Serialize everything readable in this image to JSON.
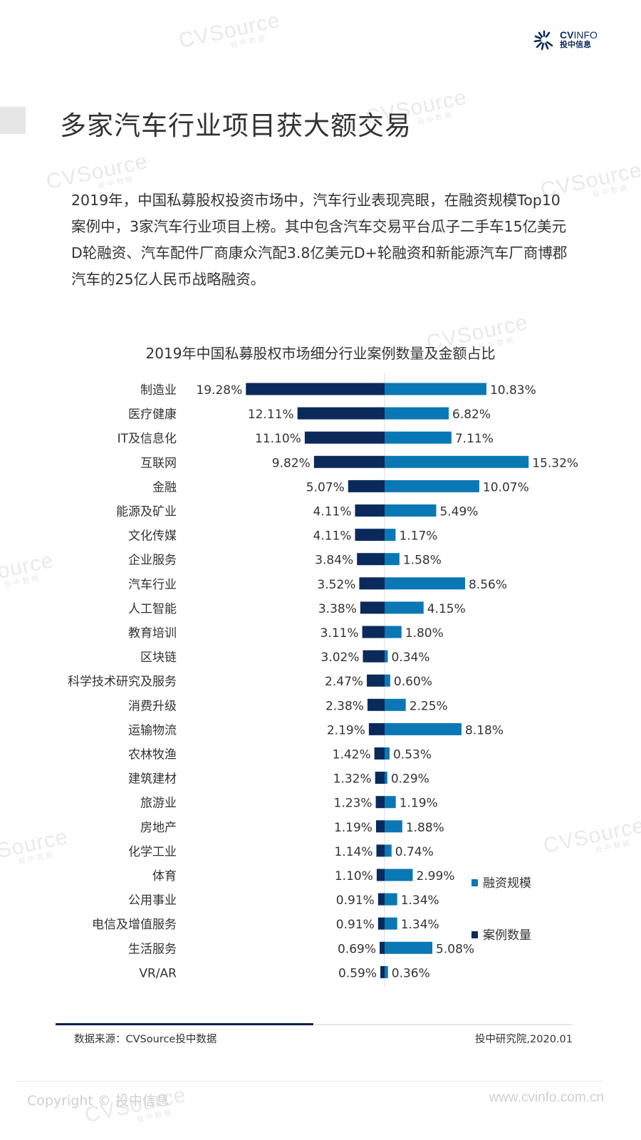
{
  "brand": {
    "logo_en_bold": "CV",
    "logo_en_light": "INFO",
    "logo_cn": "投中信息",
    "watermark_en": "CVSource",
    "watermark_cn": "投中数据"
  },
  "page_title": "多家汽车行业项目获大额交易",
  "intro_text": "2019年，中国私募股权投资市场中，汽车行业表现亮眼，在融资规模Top10案例中，3家汽车行业项目上榜。其中包含汽车交易平台瓜子二手车15亿美元D轮融资、汽车配件厂商康众汽配3.8亿美元D+轮融资和新能源汽车厂商博郡汽车的25亿人民币战略融资。",
  "chart_data": {
    "type": "bar",
    "orientation": "horizontal-diverging",
    "title": "2019年中国私募股权市场细分行业案例数量及金额占比",
    "xlabel": "",
    "ylabel": "",
    "unit": "%",
    "categories": [
      "制造业",
      "医疗健康",
      "IT及信息化",
      "互联网",
      "金融",
      "能源及矿业",
      "文化传媒",
      "企业服务",
      "汽车行业",
      "人工智能",
      "教育培训",
      "区块链",
      "科学技术研究及服务",
      "消费升级",
      "运输物流",
      "农林牧渔",
      "建筑建材",
      "旅游业",
      "房地产",
      "化学工业",
      "体育",
      "公用事业",
      "电信及增值服务",
      "生活服务",
      "VR/AR"
    ],
    "series": [
      {
        "name": "案例数量",
        "side": "left",
        "color": "#0b2a5b",
        "values": [
          19.28,
          12.11,
          11.1,
          9.82,
          5.07,
          4.11,
          4.11,
          3.84,
          3.52,
          3.38,
          3.11,
          3.02,
          2.47,
          2.38,
          2.19,
          1.42,
          1.32,
          1.23,
          1.19,
          1.14,
          1.1,
          0.91,
          0.91,
          0.69,
          0.59
        ],
        "labels": [
          "19.28%",
          "12.11%",
          "11.10%",
          "9.82%",
          "5.07%",
          "4.11%",
          "4.11%",
          "3.84%",
          "3.52%",
          "3.38%",
          "3.11%",
          "3.02%",
          "2.47%",
          "2.38%",
          "2.19%",
          "1.42%",
          "1.32%",
          "1.23%",
          "1.19%",
          "1.14%",
          "1.10%",
          "0.91%",
          "0.91%",
          "0.69%",
          "0.59%"
        ]
      },
      {
        "name": "融资规模",
        "side": "right",
        "color": "#0a78b4",
        "values": [
          10.83,
          6.82,
          7.11,
          15.32,
          10.07,
          5.49,
          1.17,
          1.58,
          8.56,
          4.15,
          1.8,
          0.34,
          0.6,
          2.25,
          8.18,
          0.53,
          0.29,
          1.19,
          1.88,
          0.74,
          2.99,
          1.34,
          1.34,
          5.08,
          0.36
        ],
        "labels": [
          "10.83%",
          "6.82%",
          "7.11%",
          "15.32%",
          "10.07%",
          "5.49%",
          "1.17%",
          "1.58%",
          "8.56%",
          "4.15%",
          "1.80%",
          "0.34%",
          "0.60%",
          "2.25%",
          "8.18%",
          "0.53%",
          "0.29%",
          "1.19%",
          "1.88%",
          "0.74%",
          "2.99%",
          "1.34%",
          "1.34%",
          "5.08%",
          "0.36%"
        ]
      }
    ],
    "legend": {
      "placement": "bottom-right",
      "entries": [
        "融资规模",
        "案例数量"
      ]
    },
    "grid": false
  },
  "source_text": "数据来源：CVSource投中数据",
  "credit_text": "投中研究院,2020.01",
  "footer": {
    "copyright": "Copyright © 投中信息",
    "website": "www.cvinfo.com.cn"
  }
}
